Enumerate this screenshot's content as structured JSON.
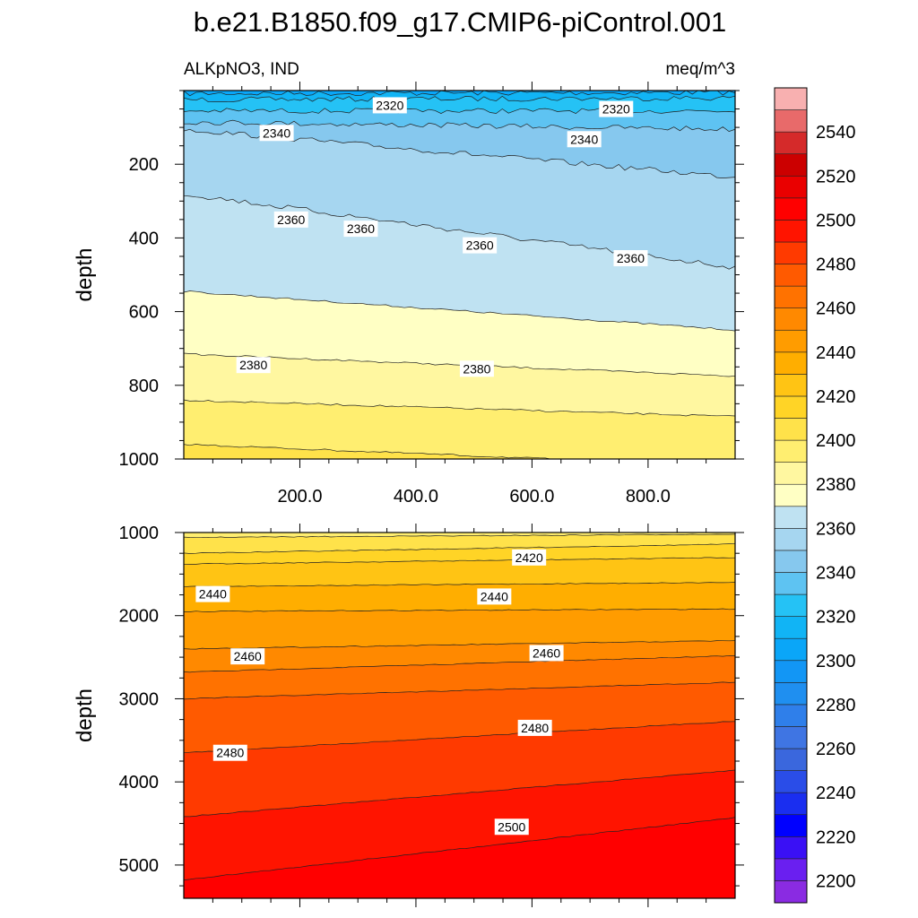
{
  "chart_data": {
    "type": "contour",
    "title": "b.e21.B1850.f09_g17.CMIP6-piControl.001",
    "variable_label": "ALKpNO3, IND",
    "units": "meq/m^3",
    "colorbar": {
      "levels": [
        2200,
        2210,
        2220,
        2230,
        2240,
        2250,
        2260,
        2270,
        2280,
        2290,
        2300,
        2310,
        2320,
        2330,
        2340,
        2350,
        2360,
        2370,
        2380,
        2390,
        2400,
        2410,
        2420,
        2430,
        2440,
        2450,
        2460,
        2470,
        2480,
        2490,
        2500,
        2510,
        2520,
        2530,
        2540,
        2550
      ],
      "colors": [
        "#8a2be2",
        "#6a1ff0",
        "#3a10f5",
        "#0000ff",
        "#1a2ef0",
        "#2a4de8",
        "#3a67dd",
        "#3f75e3",
        "#2f7fea",
        "#1f8ff0",
        "#1296f5",
        "#0aa6f8",
        "#11b4f5",
        "#25c2f5",
        "#5ec3f2",
        "#86c8ee",
        "#a6d6f0",
        "#bfe2f2",
        "#ffffc4",
        "#fff7a0",
        "#ffee70",
        "#ffe24a",
        "#ffd426",
        "#ffc414",
        "#ffae00",
        "#ff9c00",
        "#ff8900",
        "#ff7200",
        "#ff5a00",
        "#ff3a00",
        "#ff1400",
        "#ff0000",
        "#ea0000",
        "#cc0000",
        "#d52a2a",
        "#e86a6a",
        "#f8b0b0"
      ],
      "tick_labels": [
        "2200",
        "2220",
        "2240",
        "2260",
        "2280",
        "2300",
        "2320",
        "2340",
        "2360",
        "2380",
        "2400",
        "2420",
        "2440",
        "2460",
        "2480",
        "2500",
        "2520",
        "2540"
      ]
    },
    "panels": [
      {
        "name": "upper",
        "ylabel": "depth",
        "ylim": [
          0,
          1000
        ],
        "y_ticks": [
          200,
          400,
          600,
          800,
          1000
        ],
        "xlim": [
          0,
          950
        ],
        "x_ticks": [
          200,
          400,
          600,
          800
        ],
        "x_tick_labels": [
          "200.0",
          "400.0",
          "600.0",
          "800.0"
        ],
        "contours": [
          {
            "level": 2310,
            "depth_left": 8,
            "depth_right": 5
          },
          {
            "level": 2320,
            "depth_left": 25,
            "depth_right": 20
          },
          {
            "level": 2330,
            "depth_left": 55,
            "depth_right": 55
          },
          {
            "level": 2340,
            "depth_left": 85,
            "depth_right": 105
          },
          {
            "level": 2350,
            "depth_left": 105,
            "depth_right": 235
          },
          {
            "level": 2360,
            "depth_left": 280,
            "depth_right": 480
          },
          {
            "level": 2370,
            "depth_left": 545,
            "depth_right": 650
          },
          {
            "level": 2380,
            "depth_left": 715,
            "depth_right": 775
          },
          {
            "level": 2390,
            "depth_left": 840,
            "depth_right": 885
          },
          {
            "level": 2400,
            "depth_left": 960,
            "depth_right": 1020
          }
        ],
        "contour_labels": [
          {
            "text": "2320",
            "x": 355,
            "y": 40
          },
          {
            "text": "2320",
            "x": 745,
            "y": 50
          },
          {
            "text": "2340",
            "x": 160,
            "y": 115
          },
          {
            "text": "2340",
            "x": 690,
            "y": 132
          },
          {
            "text": "2360",
            "x": 185,
            "y": 350
          },
          {
            "text": "2360",
            "x": 305,
            "y": 375
          },
          {
            "text": "2360",
            "x": 510,
            "y": 420
          },
          {
            "text": "2360",
            "x": 770,
            "y": 455
          },
          {
            "text": "2380",
            "x": 120,
            "y": 745
          },
          {
            "text": "2380",
            "x": 505,
            "y": 755
          }
        ]
      },
      {
        "name": "lower",
        "ylabel": "depth",
        "ylim": [
          1000,
          5400
        ],
        "y_ticks": [
          1000,
          2000,
          3000,
          4000,
          5000
        ],
        "xlim": [
          0,
          950
        ],
        "contours": [
          {
            "level": 2400,
            "depth_left": 1060,
            "depth_right": 1020
          },
          {
            "level": 2410,
            "depth_left": 1250,
            "depth_right": 1140
          },
          {
            "level": 2420,
            "depth_left": 1380,
            "depth_right": 1300
          },
          {
            "level": 2430,
            "depth_left": 1650,
            "depth_right": 1600
          },
          {
            "level": 2440,
            "depth_left": 1950,
            "depth_right": 1920
          },
          {
            "level": 2450,
            "depth_left": 2400,
            "depth_right": 2300
          },
          {
            "level": 2460,
            "depth_left": 2680,
            "depth_right": 2480
          },
          {
            "level": 2470,
            "depth_left": 3000,
            "depth_right": 2800
          },
          {
            "level": 2480,
            "depth_left": 3650,
            "depth_right": 3270
          },
          {
            "level": 2490,
            "depth_left": 4420,
            "depth_right": 3860
          },
          {
            "level": 2500,
            "depth_left": 5180,
            "depth_right": 4430
          }
        ],
        "contour_labels": [
          {
            "text": "2420",
            "x": 595,
            "y": 1300
          },
          {
            "text": "2440",
            "x": 50,
            "y": 1740
          },
          {
            "text": "2440",
            "x": 535,
            "y": 1770
          },
          {
            "text": "2460",
            "x": 110,
            "y": 2490
          },
          {
            "text": "2460",
            "x": 625,
            "y": 2450
          },
          {
            "text": "2480",
            "x": 80,
            "y": 3650
          },
          {
            "text": "2480",
            "x": 605,
            "y": 3350
          },
          {
            "text": "2500",
            "x": 565,
            "y": 4540
          }
        ]
      }
    ]
  }
}
